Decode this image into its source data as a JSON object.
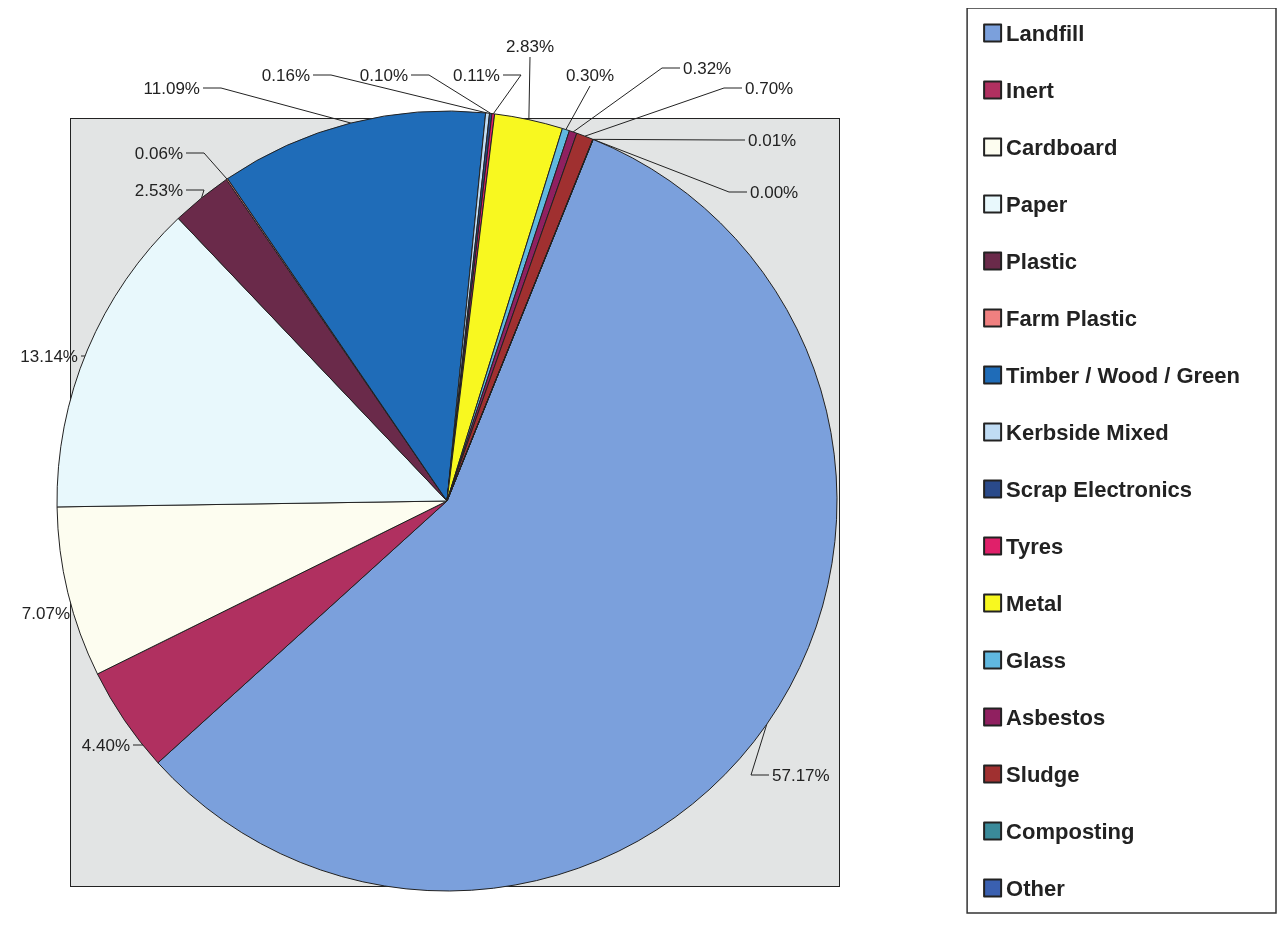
{
  "chart_data": {
    "type": "pie",
    "categories": [
      "Landfill",
      "Inert",
      "Cardboard",
      "Paper",
      "Plastic",
      "Farm Plastic",
      "Timber / Wood / Green",
      "Kerbside Mixed",
      "Scrap Electronics",
      "Tyres",
      "Metal",
      "Glass",
      "Asbestos",
      "Sludge",
      "Composting",
      "Other"
    ],
    "values": [
      57.17,
      4.4,
      7.07,
      13.14,
      2.53,
      0.06,
      11.09,
      0.16,
      0.1,
      0.11,
      2.83,
      0.3,
      0.32,
      0.7,
      0.01,
      0.0
    ],
    "value_labels": [
      "57.17%",
      "4.40%",
      "7.07%",
      "13.14%",
      "2.53%",
      "0.06%",
      "11.09%",
      "0.16%",
      "0.10%",
      "0.11%",
      "2.83%",
      "0.30%",
      "0.32%",
      "0.70%",
      "0.01%",
      "0.00%"
    ],
    "colors": [
      "#7ba0dc",
      "#b03060",
      "#fdfdf0",
      "#e8f8fc",
      "#6a2a4a",
      "#f08080",
      "#1f6cb8",
      "#c0dcf4",
      "#2a4a8a",
      "#e0206a",
      "#f8f820",
      "#60b8e0",
      "#902060",
      "#a03030",
      "#3a8a9a",
      "#3a60b0"
    ],
    "legend": "right"
  }
}
